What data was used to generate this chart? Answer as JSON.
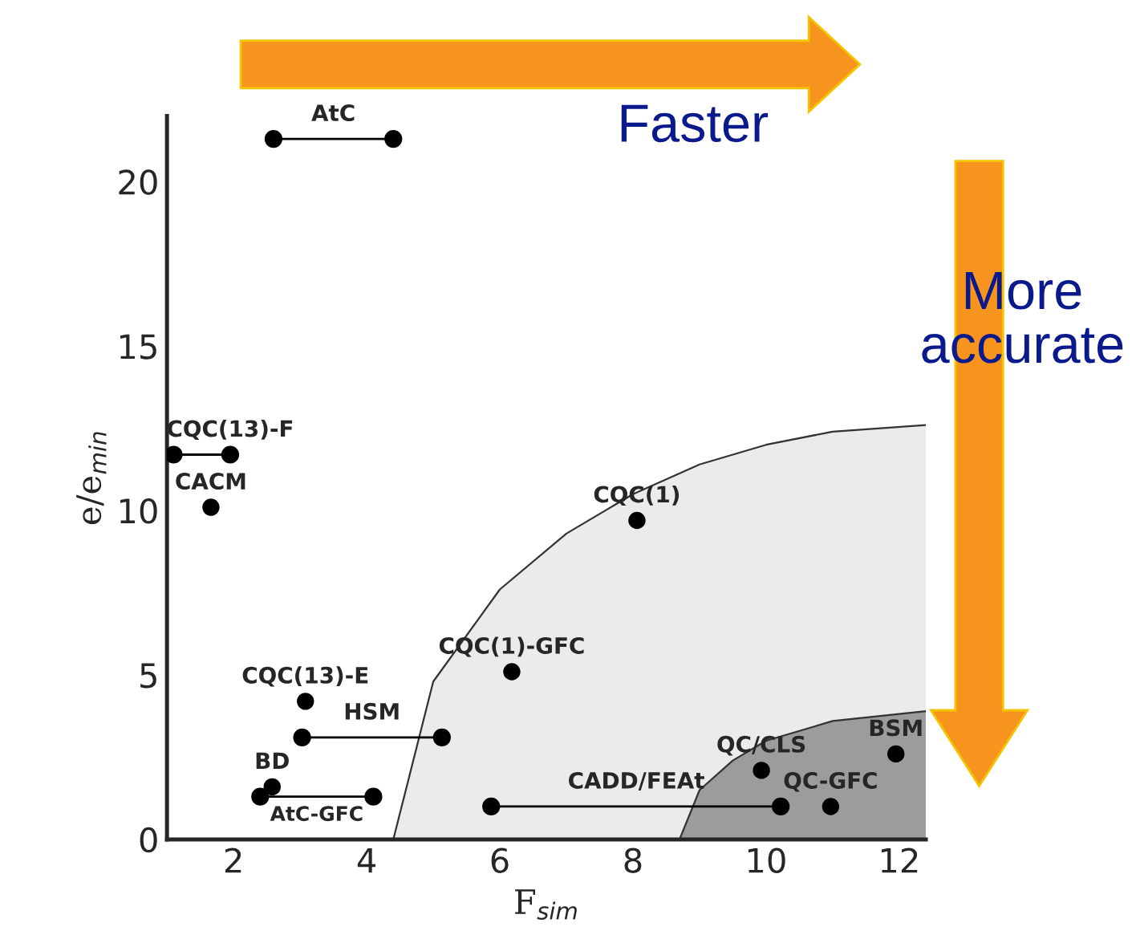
{
  "chart_data": {
    "type": "scatter",
    "xlabel": "F$_{sim}$",
    "ylabel": "e/e$_{min}$",
    "xlim": [
      1.0,
      12.4
    ],
    "ylim": [
      0,
      22
    ],
    "xticks": [
      2,
      4,
      6,
      8,
      10,
      12
    ],
    "yticks": [
      0,
      5,
      10,
      15,
      20
    ],
    "grid": false,
    "legend": false,
    "marker": "circle",
    "series": [
      {
        "type": "area",
        "marker": "none",
        "color": "#ebebeb",
        "x": [
          4.4,
          5,
          6,
          7,
          8,
          9,
          10,
          11,
          12.4
        ],
        "values": [
          0,
          4.8,
          7.6,
          9.3,
          10.5,
          11.4,
          12.0,
          12.4,
          12.6
        ]
      },
      {
        "type": "area",
        "marker": "none",
        "color": "#9c9c9c",
        "x": [
          8.7,
          9,
          9.5,
          10,
          11,
          12.4
        ],
        "values": [
          0,
          1.5,
          2.4,
          3.0,
          3.6,
          3.9
        ]
      },
      {
        "type": "line",
        "color": "#000000",
        "x": [
          2.6,
          4.4
        ],
        "values": [
          21.3,
          21.3
        ]
      },
      {
        "type": "line",
        "color": "#000000",
        "x": [
          1.1,
          1.95
        ],
        "values": [
          11.7,
          11.7
        ]
      },
      {
        "color": "#000000",
        "x": [
          1.66
        ],
        "values": [
          10.1
        ]
      },
      {
        "color": "#000000",
        "x": [
          8.06
        ],
        "values": [
          9.7
        ]
      },
      {
        "color": "#000000",
        "x": [
          6.18
        ],
        "values": [
          5.1
        ]
      },
      {
        "color": "#000000",
        "x": [
          3.08
        ],
        "values": [
          4.2
        ]
      },
      {
        "type": "line",
        "color": "#000000",
        "x": [
          3.03,
          5.13
        ],
        "values": [
          3.1,
          3.1
        ]
      },
      {
        "color": "#000000",
        "x": [
          2.58
        ],
        "values": [
          1.6
        ]
      },
      {
        "type": "line",
        "color": "#000000",
        "x": [
          2.4,
          4.1
        ],
        "values": [
          1.3,
          1.3
        ]
      },
      {
        "type": "line",
        "color": "#000000",
        "x": [
          5.87,
          10.22
        ],
        "values": [
          1.0,
          1.0
        ]
      },
      {
        "color": "#000000",
        "x": [
          9.93
        ],
        "values": [
          2.1
        ]
      },
      {
        "color": "#000000",
        "x": [
          10.97
        ],
        "values": [
          1.0
        ]
      },
      {
        "color": "#000000",
        "x": [
          11.95
        ],
        "values": [
          2.6
        ]
      }
    ],
    "annotations": [
      {
        "text": "AtC",
        "x": 3.5,
        "y": 21.3
      },
      {
        "text": "CQC(13)-F",
        "x": 1.95,
        "y": 11.7
      },
      {
        "text": "CACM",
        "x": 1.66,
        "y": 10.1
      },
      {
        "text": "CQC(1)",
        "x": 8.06,
        "y": 9.7
      },
      {
        "text": "CQC(1)-GFC",
        "x": 6.18,
        "y": 5.1
      },
      {
        "text": "CQC(13)-E",
        "x": 3.08,
        "y": 4.2
      },
      {
        "text": "HSM",
        "x": 4.08,
        "y": 3.1
      },
      {
        "text": "BD",
        "x": 2.58,
        "y": 1.6
      },
      {
        "text": "AtC-GFC",
        "x": 3.25,
        "y": 1.3
      },
      {
        "text": "CADD/FEAt",
        "x": 8.05,
        "y": 1.0
      },
      {
        "text": "QC/CLS",
        "x": 9.93,
        "y": 2.1
      },
      {
        "text": "QC-GFC",
        "x": 10.97,
        "y": 1.0
      },
      {
        "text": "BSM",
        "x": 11.95,
        "y": 2.6
      },
      "Faster",
      "More\naccurate"
    ]
  }
}
